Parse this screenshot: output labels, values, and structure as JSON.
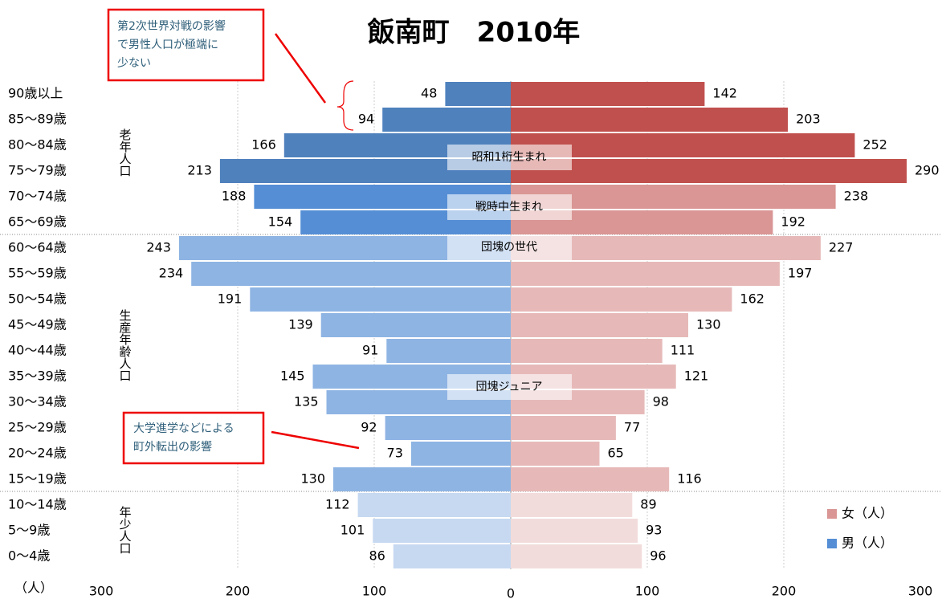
{
  "chart_data": {
    "type": "pyramid",
    "title": "飯南町　2010年",
    "categories": [
      "90歳以上",
      "85〜89歳",
      "80〜84歳",
      "75〜79歳",
      "70〜74歳",
      "65〜69歳",
      "60〜64歳",
      "55〜59歳",
      "50〜54歳",
      "45〜49歳",
      "40〜44歳",
      "35〜39歳",
      "30〜34歳",
      "25〜29歳",
      "20〜24歳",
      "15〜19歳",
      "10〜14歳",
      "5〜9歳",
      "0〜4歳"
    ],
    "series": [
      {
        "name": "男（人）",
        "color": "#558ed5",
        "side": "left",
        "values": [
          48,
          94,
          166,
          213,
          188,
          154,
          243,
          234,
          191,
          139,
          91,
          145,
          135,
          92,
          73,
          130,
          112,
          101,
          86
        ],
        "colors": [
          "#4f81bd",
          "#4f81bd",
          "#4f81bd",
          "#4f81bd",
          "#558ed5",
          "#558ed5",
          "#8eb4e3",
          "#8eb4e3",
          "#8eb4e3",
          "#8eb4e3",
          "#8eb4e3",
          "#8eb4e3",
          "#8eb4e3",
          "#8eb4e3",
          "#8eb4e3",
          "#8eb4e3",
          "#c6d9f1",
          "#c6d9f1",
          "#c6d9f1"
        ]
      },
      {
        "name": "女（人）",
        "color": "#d99694",
        "side": "right",
        "values": [
          142,
          203,
          252,
          290,
          238,
          192,
          227,
          197,
          162,
          130,
          111,
          121,
          98,
          77,
          65,
          116,
          89,
          93,
          96
        ],
        "colors": [
          "#c0504d",
          "#c0504d",
          "#c0504d",
          "#c0504d",
          "#d99694",
          "#d99694",
          "#e6b9b8",
          "#e6b9b8",
          "#e6b9b8",
          "#e6b9b8",
          "#e6b9b8",
          "#e6b9b8",
          "#e6b9b8",
          "#e6b9b8",
          "#e6b9b8",
          "#e6b9b8",
          "#f2dcdb",
          "#f2dcdb",
          "#f2dcdb"
        ]
      }
    ],
    "xlim": [
      -300,
      300
    ],
    "xticks": [
      {
        "value": -300,
        "label": "300"
      },
      {
        "value": -200,
        "label": "200"
      },
      {
        "value": -100,
        "label": "100"
      },
      0,
      100,
      200,
      300
    ],
    "x_label": "（人）",
    "groups": [
      "老年人口",
      "生産年齢人口",
      "年少人口"
    ],
    "generation_labels": [
      "昭和1桁生まれ",
      "戦時中生まれ",
      "団塊の世代",
      "団塊ジュニア"
    ],
    "annotations": [
      [
        "第2次世界対戦の影響",
        "で男性人口が極端に",
        "少ない"
      ],
      [
        "大学進学などによる",
        "町外転出の影響"
      ]
    ],
    "grid": true
  }
}
